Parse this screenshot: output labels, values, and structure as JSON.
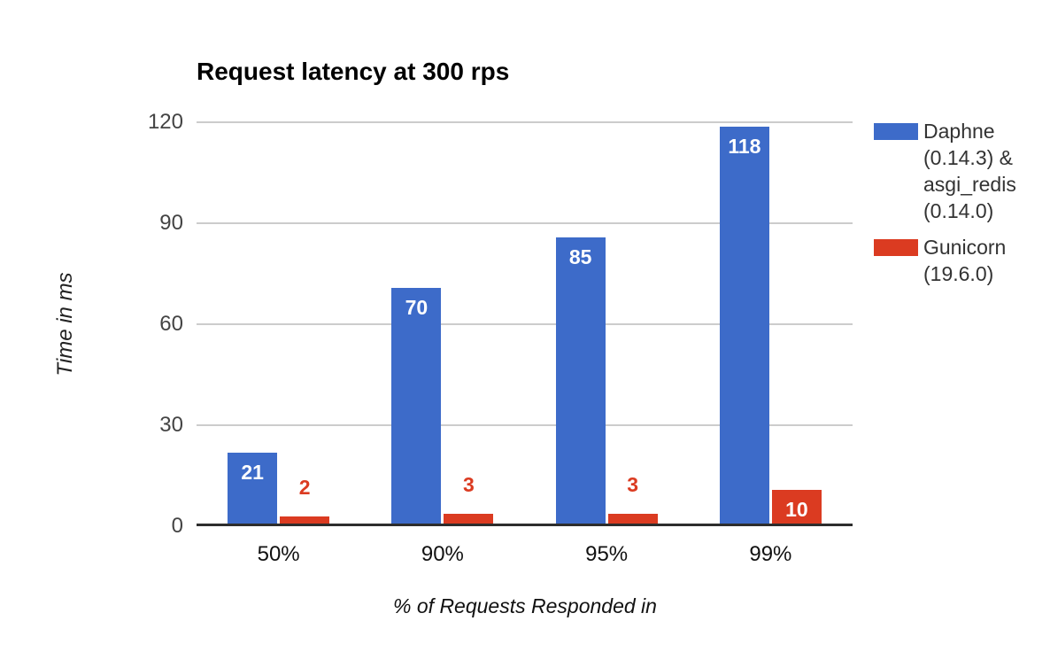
{
  "chart_data": {
    "type": "bar",
    "title": "Request latency at 300 rps",
    "xlabel": "% of Requests Responded in",
    "ylabel": "Time in ms",
    "categories": [
      "50%",
      "90%",
      "95%",
      "99%"
    ],
    "series": [
      {
        "name": "Daphne (0.14.3) & asgi_redis (0.14.0)",
        "color": "#3D6BC9",
        "values": [
          21,
          70,
          85,
          118
        ]
      },
      {
        "name": "Gunicorn (19.6.0)",
        "color": "#DB3B21",
        "values": [
          2,
          3,
          3,
          10
        ]
      }
    ],
    "ylim": [
      0,
      120
    ],
    "yticks": [
      0,
      30,
      60,
      90,
      120
    ],
    "grid": true,
    "legend_position": "right"
  },
  "legend": {
    "entries": [
      {
        "lines": [
          "Daphne",
          "(0.14.3) &",
          "asgi_redis",
          "(0.14.0)"
        ],
        "color": "#3D6BC9"
      },
      {
        "lines": [
          "Gunicorn",
          "(19.6.0)"
        ],
        "color": "#DB3B21"
      }
    ]
  },
  "style": {
    "background": "#ffffff",
    "grid_color": "#cccccc",
    "axis_line_color": "#2d2d2d",
    "tick_label_color": "#444444",
    "title_color": "#000000",
    "value_label_inside_color": "#ffffff"
  }
}
